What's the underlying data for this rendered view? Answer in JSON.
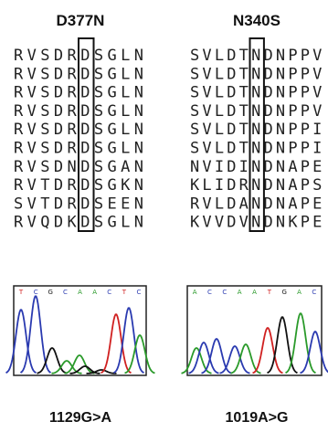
{
  "panels": [
    {
      "title": "D377N",
      "sequences": [
        "RVSDRDSGLN",
        "RVSDRDSGLN",
        "RVSDRDSGLN",
        "RVSDRDSGLN",
        "RVSDRDSGLN",
        "RVSDRDSGLN",
        "RVSDNDSGAN",
        "RVTDRDSGKN",
        "SVTDRDSEEN",
        "RVQDKDSGLN"
      ],
      "bases": [
        "T",
        "C",
        "G",
        "C",
        "A",
        "A",
        "C",
        "T",
        "C"
      ],
      "mutation": "1129G>A"
    },
    {
      "title": "N340S",
      "sequences": [
        "SVLDTNDNPPV",
        "SVLDTNDNPPV",
        "SVLDTNDNPPV",
        "SVLDTNDNPPV",
        "SVLDTNDNPPI",
        "SVLDTNDNPPI",
        "NVIDINDNAPE",
        "KLIDRNDNAPS",
        "RVLDANDNAPE",
        "KVVDVNDNKPE"
      ],
      "bases": [
        "A",
        "C",
        "C",
        "A",
        "A",
        "T",
        "G",
        "A",
        "C"
      ],
      "mutation": "1019A>G"
    }
  ]
}
